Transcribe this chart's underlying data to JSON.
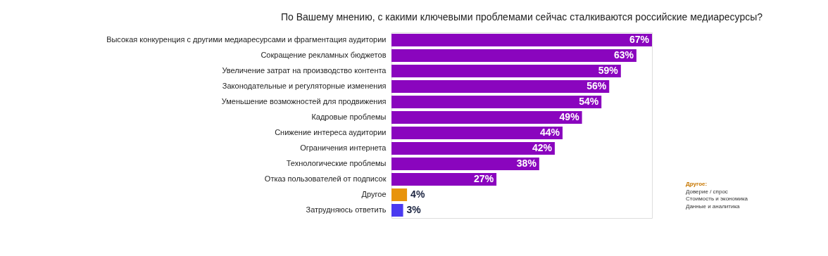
{
  "chart_data": {
    "type": "bar",
    "orientation": "horizontal",
    "title": "По Вашему мнению, с какими ключевыми проблемами сейчас сталкиваются российские медиаресурсы?",
    "categories": [
      "Высокая конкуренция с другими медиаресурсами и фрагментация аудитории",
      "Сокращение рекламных бюджетов",
      "Увеличение затрат на производство контента",
      "Законодательные и регуляторные изменения",
      "Уменьшение возможностей для продвижения",
      "Кадровые проблемы",
      "Снижение интереса аудитории",
      "Ограничения интернета",
      "Технологические проблемы",
      "Отказ пользователей от подписок",
      "Другое",
      "Затрудняюсь ответить"
    ],
    "values": [
      67,
      63,
      59,
      56,
      54,
      49,
      44,
      42,
      38,
      27,
      4,
      3
    ],
    "colors": [
      "#8a05be",
      "#8a05be",
      "#8a05be",
      "#8a05be",
      "#8a05be",
      "#8a05be",
      "#8a05be",
      "#8a05be",
      "#8a05be",
      "#8a05be",
      "#e8940c",
      "#4a3af0"
    ],
    "value_labels": [
      "67%",
      "63%",
      "59%",
      "56%",
      "54%",
      "49%",
      "44%",
      "42%",
      "38%",
      "27%",
      "4%",
      "3%"
    ],
    "annotations": [
      "Другое:",
      "Доверие / спрос",
      "Стоимость и экономика",
      "Данные и аналитика"
    ]
  }
}
